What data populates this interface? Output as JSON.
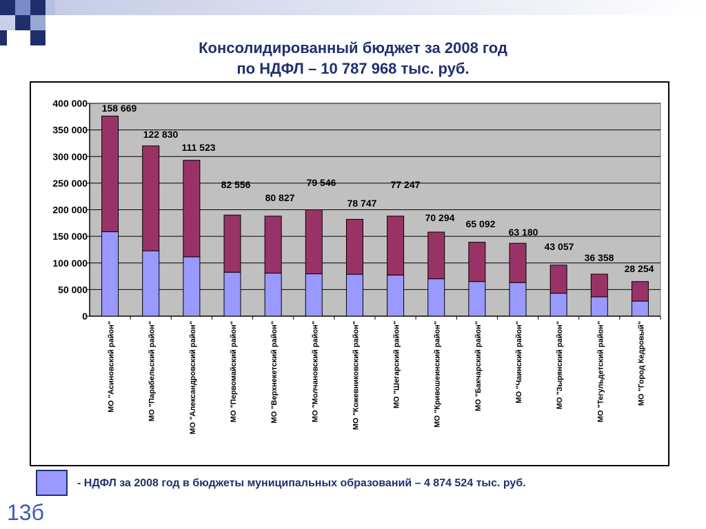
{
  "slide": {
    "title_line1": "Консолидированный бюджет за 2008 год",
    "title_line2": "по НДФЛ – 10 787 968 тыс. руб.",
    "legend_text": "- НДФЛ за 2008 год в бюджеты муниципальных образований – 4 874 524 тыс. руб.",
    "page_number": "13б"
  },
  "colors": {
    "lower_series": "#9999ff",
    "upper_series": "#993366",
    "plot_background": "#c0c0c0",
    "title_text": "#1f2f6e"
  },
  "chart_data": {
    "type": "bar",
    "stacked": true,
    "title": "",
    "xlabel": "",
    "ylabel": "",
    "ylim": [
      0,
      400000
    ],
    "yticks": [
      0,
      50000,
      100000,
      150000,
      200000,
      250000,
      300000,
      350000,
      400000
    ],
    "ytick_labels": [
      "0",
      "50 000",
      "100 000",
      "150 000",
      "200 000",
      "250 000",
      "300 000",
      "350 000",
      "400 000"
    ],
    "grid": true,
    "categories": [
      "МО \"Асиновский район\"",
      "МО \"Парабельский район\"",
      "МО \"Александровский район\"",
      "МО \"Первомайский район\"",
      "МО \"Верхнекетский район\"",
      "МО \"Молчановский район\"",
      "МО \"Кожевниковский район\"",
      "МО \"Шегарский район\"",
      "МО \"Кривошеинский район\"",
      "МО \"Бакчарский район\"",
      "МО \"Чаинский район\"",
      "МО \"Зырянский район\"",
      "МО \"Тегульдетский район\"",
      "МО \"Город Кедровый\""
    ],
    "series": [
      {
        "name": "",
        "values": [
          158669,
          122830,
          111523,
          82556,
          80827,
          79546,
          78747,
          77247,
          70294,
          65092,
          63180,
          43057,
          36358,
          28254
        ]
      },
      {
        "name": "",
        "values": [
          217331,
          197170,
          181477,
          107444,
          107173,
          120454,
          103253,
          110753,
          87706,
          73908,
          73820,
          52943,
          42642,
          36746
        ]
      }
    ],
    "data_labels": [
      "158 669",
      "122 830",
      "111 523",
      "82 556",
      "80 827",
      "79 546",
      "78 747",
      "77 247",
      "70 294",
      "65 092",
      "63 180",
      "43 057",
      "36 358",
      "28 254"
    ]
  }
}
